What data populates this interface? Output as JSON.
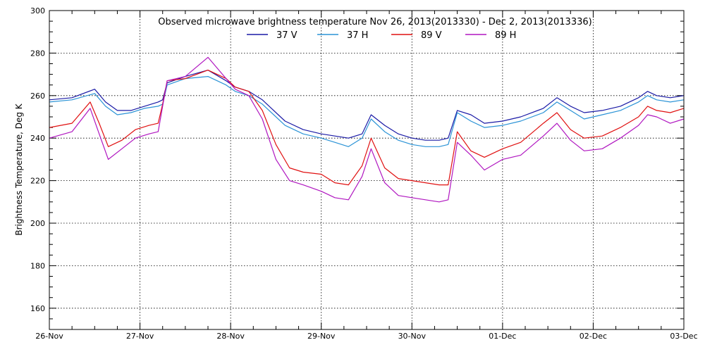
{
  "chart_data": {
    "type": "line",
    "title": "Observed microwave brightness temperature Nov 26, 2013(2013330) - Dec  2, 2013(2013336)",
    "ylabel": "Brightness Temperature, Deg K",
    "xlabel": "",
    "ylim": [
      150,
      300
    ],
    "xlim": [
      0,
      7
    ],
    "yticks": [
      160,
      180,
      200,
      220,
      240,
      260,
      280,
      300
    ],
    "xticks": [
      0,
      1,
      2,
      3,
      4,
      5,
      6,
      7
    ],
    "xtick_labels": [
      "26-Nov",
      "27-Nov",
      "28-Nov",
      "29-Nov",
      "30-Nov",
      "01-Dec",
      "02-Dec",
      "03-Dec"
    ],
    "grid": true,
    "legend_position": "top-center",
    "series": [
      {
        "name": "37 V",
        "color": "#1a1aa6",
        "x": [
          0,
          0.25,
          0.5,
          0.62,
          0.75,
          0.9,
          1.05,
          1.2,
          1.25,
          1.3,
          1.5,
          1.75,
          1.95,
          2.05,
          2.2,
          2.35,
          2.6,
          2.8,
          3.0,
          3.15,
          3.3,
          3.45,
          3.55,
          3.7,
          3.85,
          4.0,
          4.15,
          4.3,
          4.4,
          4.5,
          4.65,
          4.8,
          5.0,
          5.2,
          5.45,
          5.6,
          5.75,
          5.9,
          6.1,
          6.3,
          6.5,
          6.6,
          6.7,
          6.85,
          7.0
        ],
        "values": [
          258,
          259,
          263,
          257,
          253,
          253,
          255,
          257,
          258,
          266,
          269,
          272,
          267,
          264,
          262,
          258,
          248,
          244,
          242,
          241,
          240,
          242,
          251,
          246,
          242,
          240,
          239,
          239,
          240,
          253,
          251,
          247,
          248,
          250,
          254,
          259,
          255,
          252,
          253,
          255,
          259,
          262,
          260,
          259,
          260
        ]
      },
      {
        "name": "37 H",
        "color": "#2b93d6",
        "x": [
          0,
          0.25,
          0.5,
          0.62,
          0.75,
          0.9,
          1.05,
          1.2,
          1.25,
          1.3,
          1.5,
          1.75,
          1.95,
          2.05,
          2.2,
          2.35,
          2.6,
          2.8,
          3.0,
          3.15,
          3.3,
          3.45,
          3.55,
          3.7,
          3.85,
          4.0,
          4.15,
          4.3,
          4.4,
          4.5,
          4.65,
          4.8,
          5.0,
          5.2,
          5.45,
          5.6,
          5.75,
          5.9,
          6.1,
          6.3,
          6.5,
          6.6,
          6.7,
          6.85,
          7.0
        ],
        "values": [
          257,
          258,
          261,
          255,
          251,
          252,
          254,
          255,
          256,
          265,
          268,
          269,
          265,
          262,
          260,
          256,
          246,
          242,
          240,
          238,
          236,
          240,
          249,
          243,
          239,
          237,
          236,
          236,
          237,
          252,
          248,
          245,
          246,
          248,
          252,
          257,
          253,
          249,
          251,
          253,
          257,
          260,
          258,
          257,
          258
        ]
      },
      {
        "name": "89 V",
        "color": "#e01010",
        "x": [
          0,
          0.25,
          0.45,
          0.55,
          0.65,
          0.8,
          0.95,
          1.1,
          1.2,
          1.25,
          1.3,
          1.5,
          1.75,
          1.95,
          2.05,
          2.2,
          2.35,
          2.5,
          2.65,
          2.8,
          3.0,
          3.15,
          3.3,
          3.45,
          3.55,
          3.7,
          3.85,
          4.0,
          4.15,
          4.3,
          4.4,
          4.5,
          4.65,
          4.8,
          5.0,
          5.2,
          5.45,
          5.6,
          5.75,
          5.9,
          6.1,
          6.3,
          6.5,
          6.6,
          6.7,
          6.85,
          7.0
        ],
        "values": [
          245,
          247,
          257,
          247,
          236,
          239,
          244,
          246,
          247,
          256,
          267,
          268,
          272,
          268,
          264,
          262,
          253,
          237,
          226,
          224,
          223,
          219,
          218,
          227,
          240,
          226,
          221,
          220,
          219,
          218,
          218,
          243,
          234,
          231,
          235,
          238,
          247,
          252,
          244,
          240,
          241,
          245,
          250,
          255,
          253,
          252,
          254
        ]
      },
      {
        "name": "89 H",
        "color": "#b016c0",
        "x": [
          0,
          0.25,
          0.45,
          0.55,
          0.65,
          0.8,
          0.95,
          1.1,
          1.2,
          1.25,
          1.3,
          1.5,
          1.75,
          1.95,
          2.05,
          2.2,
          2.35,
          2.5,
          2.65,
          2.8,
          3.0,
          3.15,
          3.3,
          3.45,
          3.55,
          3.7,
          3.85,
          4.0,
          4.15,
          4.3,
          4.4,
          4.5,
          4.65,
          4.8,
          5.0,
          5.2,
          5.45,
          5.6,
          5.75,
          5.9,
          6.1,
          6.3,
          6.5,
          6.6,
          6.7,
          6.85,
          7.0
        ],
        "values": [
          240,
          243,
          254,
          242,
          230,
          235,
          240,
          242,
          243,
          255,
          267,
          269,
          278,
          268,
          263,
          260,
          249,
          230,
          220,
          218,
          215,
          212,
          211,
          222,
          235,
          219,
          213,
          212,
          211,
          210,
          211,
          238,
          232,
          225,
          230,
          232,
          241,
          247,
          239,
          234,
          235,
          240,
          246,
          251,
          250,
          247,
          249
        ]
      }
    ]
  }
}
